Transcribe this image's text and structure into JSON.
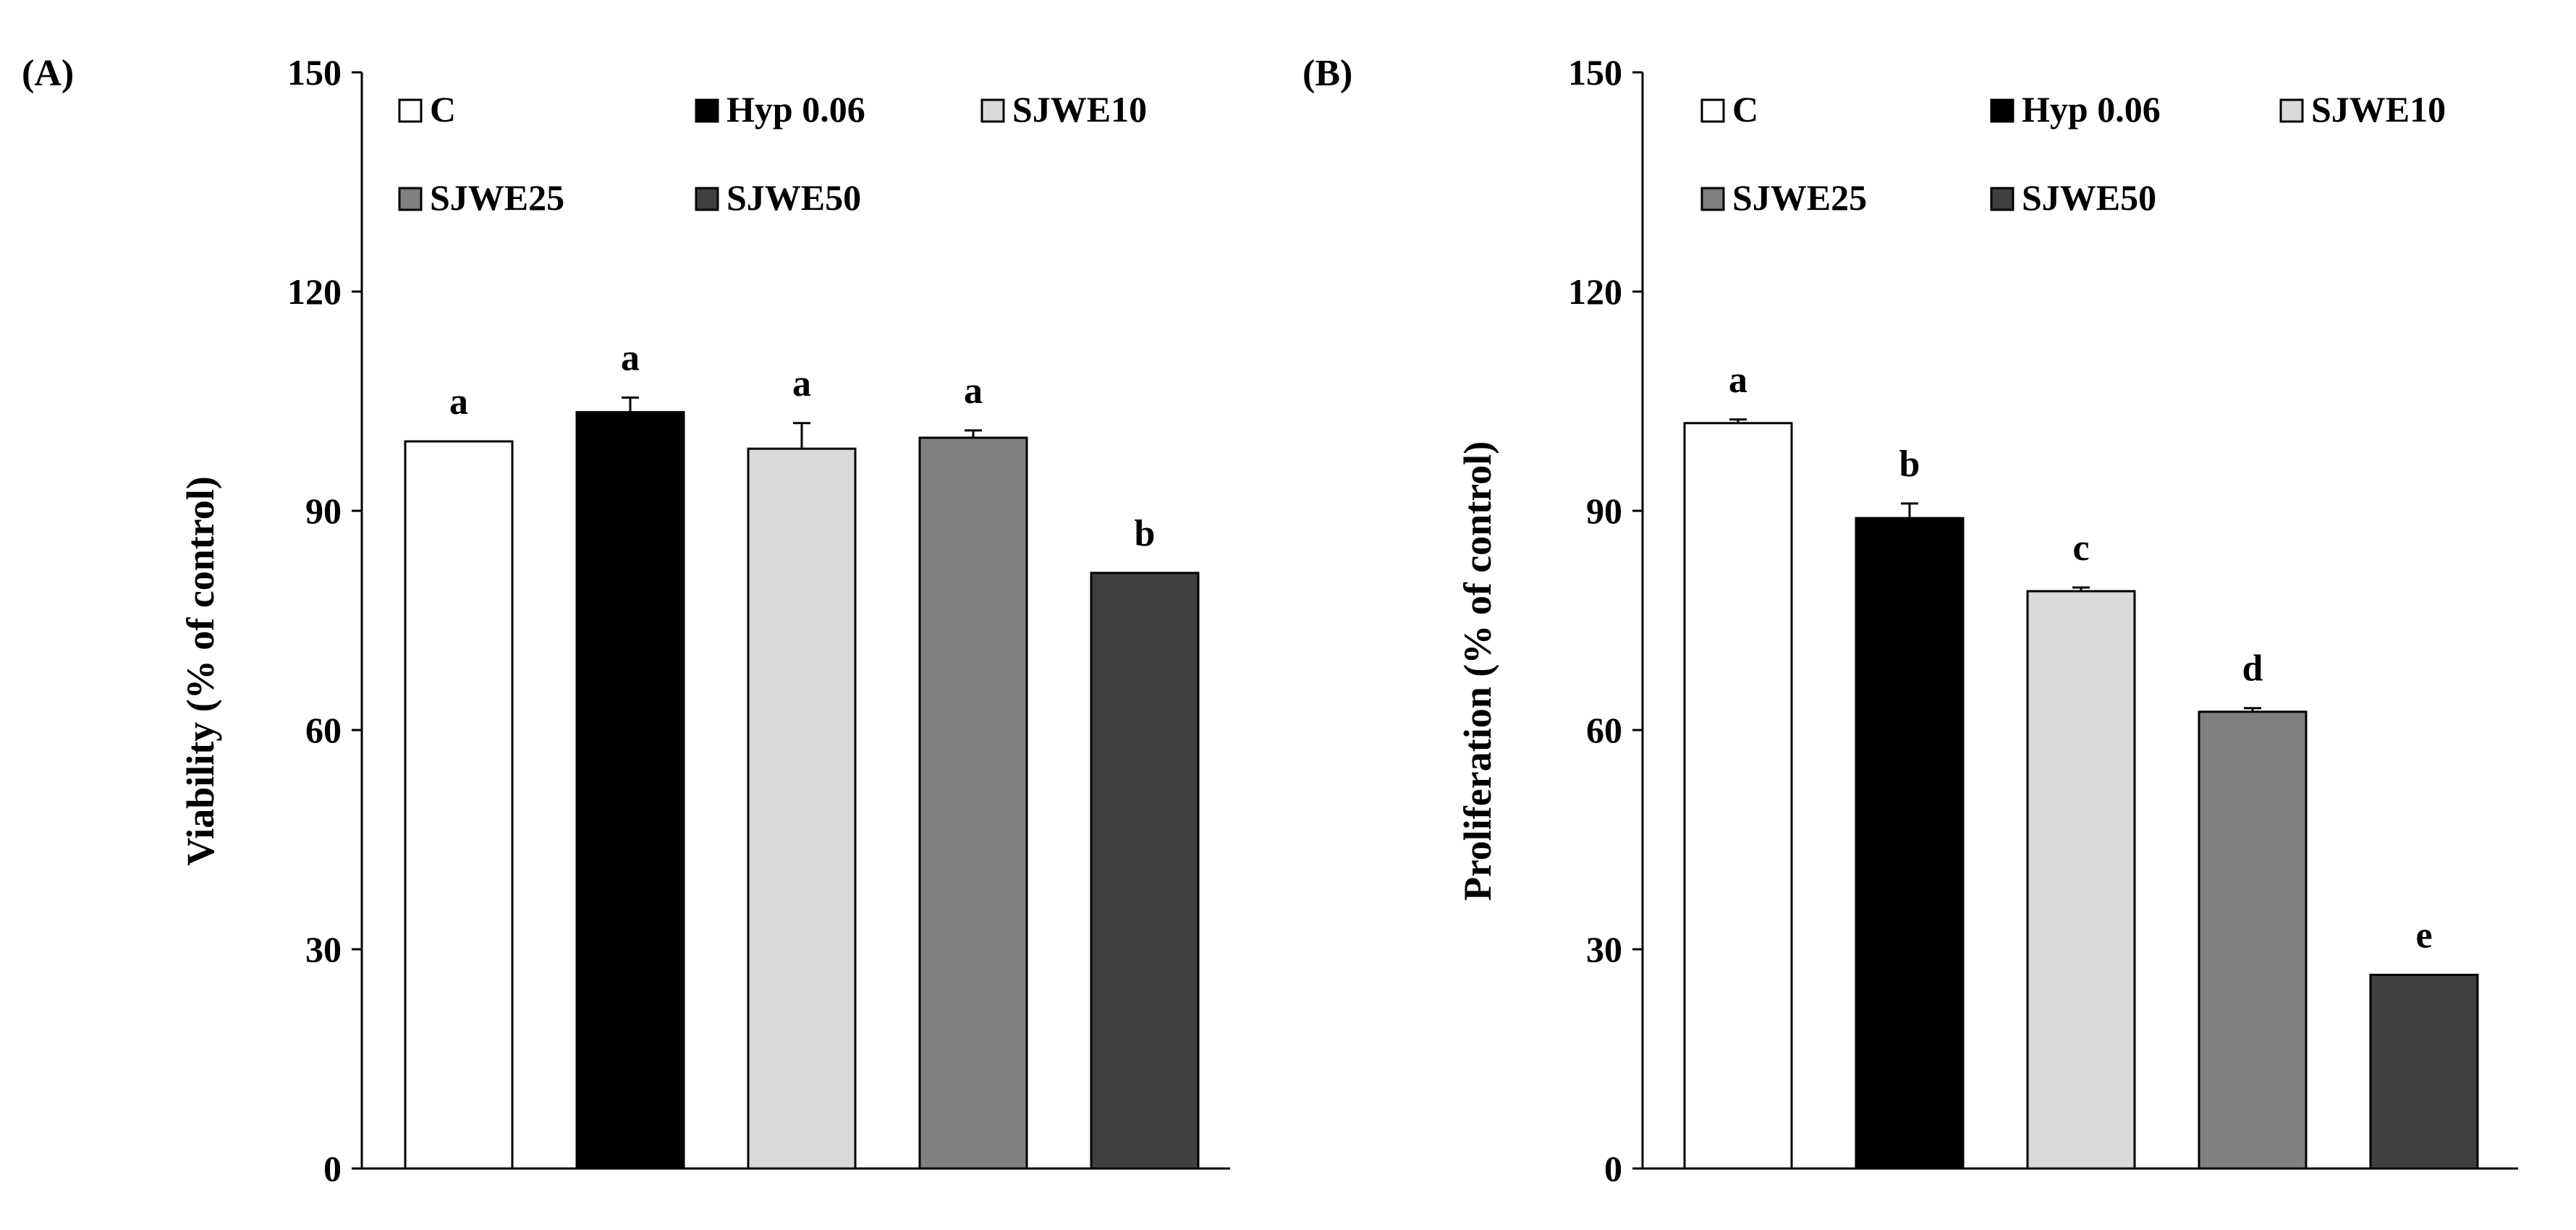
{
  "chart_data": [
    {
      "type": "bar",
      "panel_label": "(A)",
      "categories": [
        "C",
        "Hyp 0.06",
        "SJWE10",
        "SJWE25",
        "SJWE50"
      ],
      "values": [
        99.5,
        103.5,
        98.5,
        100.0,
        81.5
      ],
      "errors": [
        0.0,
        2.0,
        3.5,
        1.0,
        0.0
      ],
      "significance": [
        "a",
        "a",
        "a",
        "a",
        "b"
      ],
      "colors": [
        "#ffffff",
        "#000000",
        "#d9d9d9",
        "#808080",
        "#404040"
      ],
      "title": "",
      "xlabel": "",
      "ylabel": "Viability (% of control)",
      "ylim": [
        0,
        150
      ],
      "yticks": [
        "0",
        "30",
        "60",
        "90",
        "120",
        "150"
      ],
      "grid": false,
      "legend": [
        "C",
        "Hyp 0.06",
        "SJWE10",
        "SJWE25",
        "SJWE50"
      ],
      "legend_position": "top"
    },
    {
      "type": "bar",
      "panel_label": "(B)",
      "categories": [
        "C",
        "Hyp 0.06",
        "SJWE10",
        "SJWE25",
        "SJWE50"
      ],
      "values": [
        102.0,
        89.0,
        79.0,
        62.5,
        26.5
      ],
      "errors": [
        0.5,
        2.0,
        0.5,
        0.5,
        0.0
      ],
      "significance": [
        "a",
        "b",
        "c",
        "d",
        "e"
      ],
      "colors": [
        "#ffffff",
        "#000000",
        "#d9d9d9",
        "#808080",
        "#404040"
      ],
      "title": "",
      "xlabel": "",
      "ylabel": "Proliferation (% of control)",
      "ylim": [
        0,
        150
      ],
      "yticks": [
        "0",
        "30",
        "60",
        "90",
        "120",
        "150"
      ],
      "grid": false,
      "legend": [
        "C",
        "Hyp 0.06",
        "SJWE10",
        "SJWE25",
        "SJWE50"
      ],
      "legend_position": "top"
    }
  ]
}
